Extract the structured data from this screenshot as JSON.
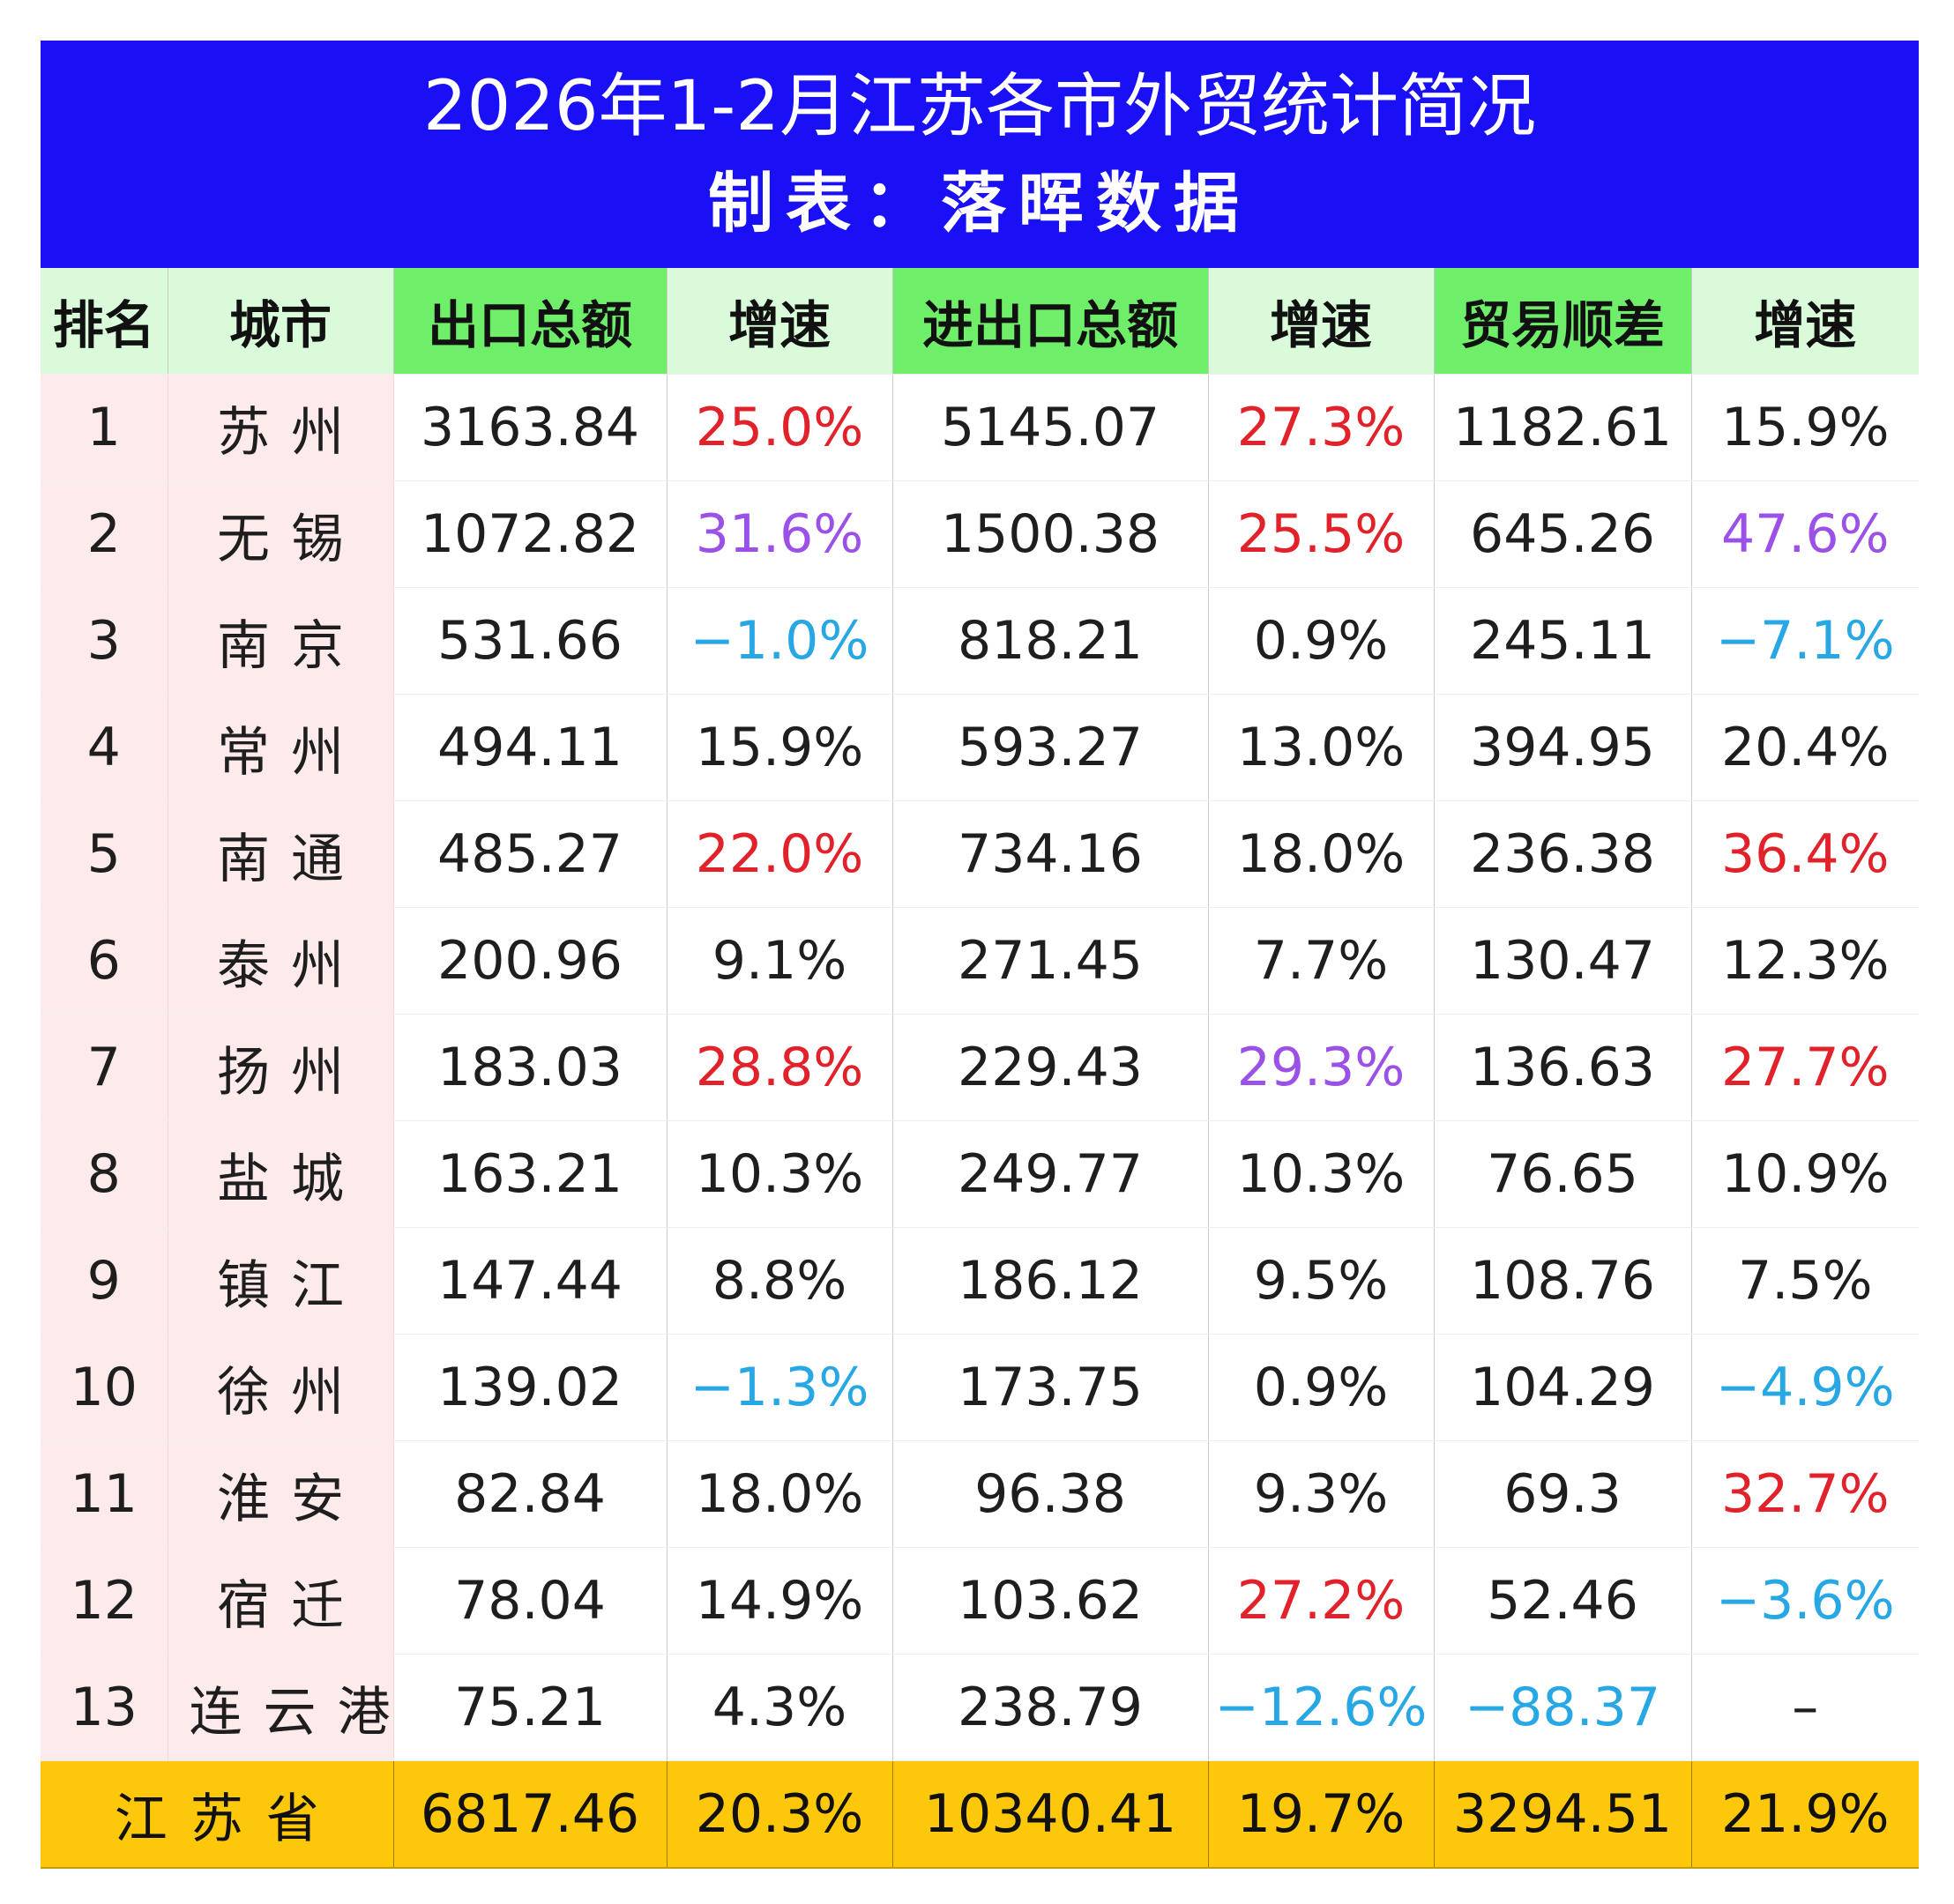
{
  "title": "2026年1-2月江苏各市外贸统计简况",
  "subtitle": "制表：落晖数据",
  "headers": [
    "排名",
    "城市",
    "出口总额",
    "增速",
    "进出口总额",
    "增速",
    "贸易顺差",
    "增速"
  ],
  "colors": {
    "title_bg": "#1a10f5",
    "header_bg": "#d9fbd9",
    "header_highlight_bg": "#6fee6a",
    "rank_city_bg": "#fdeaea",
    "total_bg": "#fdc70a",
    "red": "#e2222a",
    "purple": "#9b51e8",
    "blue": "#27a7e3"
  },
  "rows": [
    {
      "rank": "1",
      "city": "苏州",
      "export": "3163.84",
      "export_growth": "25.0%",
      "export_growth_color": "red",
      "total": "5145.07",
      "total_growth": "27.3%",
      "total_growth_color": "red",
      "surplus": "1182.61",
      "surplus_color": "",
      "surplus_growth": "15.9%",
      "surplus_growth_color": ""
    },
    {
      "rank": "2",
      "city": "无锡",
      "export": "1072.82",
      "export_growth": "31.6%",
      "export_growth_color": "purple",
      "total": "1500.38",
      "total_growth": "25.5%",
      "total_growth_color": "red",
      "surplus": "645.26",
      "surplus_color": "",
      "surplus_growth": "47.6%",
      "surplus_growth_color": "purple"
    },
    {
      "rank": "3",
      "city": "南京",
      "export": "531.66",
      "export_growth": "−1.0%",
      "export_growth_color": "blue",
      "total": "818.21",
      "total_growth": "0.9%",
      "total_growth_color": "",
      "surplus": "245.11",
      "surplus_color": "",
      "surplus_growth": "−7.1%",
      "surplus_growth_color": "blue"
    },
    {
      "rank": "4",
      "city": "常州",
      "export": "494.11",
      "export_growth": "15.9%",
      "export_growth_color": "",
      "total": "593.27",
      "total_growth": "13.0%",
      "total_growth_color": "",
      "surplus": "394.95",
      "surplus_color": "",
      "surplus_growth": "20.4%",
      "surplus_growth_color": ""
    },
    {
      "rank": "5",
      "city": "南通",
      "export": "485.27",
      "export_growth": "22.0%",
      "export_growth_color": "red",
      "total": "734.16",
      "total_growth": "18.0%",
      "total_growth_color": "",
      "surplus": "236.38",
      "surplus_color": "",
      "surplus_growth": "36.4%",
      "surplus_growth_color": "red"
    },
    {
      "rank": "6",
      "city": "泰州",
      "export": "200.96",
      "export_growth": "9.1%",
      "export_growth_color": "",
      "total": "271.45",
      "total_growth": "7.7%",
      "total_growth_color": "",
      "surplus": "130.47",
      "surplus_color": "",
      "surplus_growth": "12.3%",
      "surplus_growth_color": ""
    },
    {
      "rank": "7",
      "city": "扬州",
      "export": "183.03",
      "export_growth": "28.8%",
      "export_growth_color": "red",
      "total": "229.43",
      "total_growth": "29.3%",
      "total_growth_color": "purple",
      "surplus": "136.63",
      "surplus_color": "",
      "surplus_growth": "27.7%",
      "surplus_growth_color": "red"
    },
    {
      "rank": "8",
      "city": "盐城",
      "export": "163.21",
      "export_growth": "10.3%",
      "export_growth_color": "",
      "total": "249.77",
      "total_growth": "10.3%",
      "total_growth_color": "",
      "surplus": "76.65",
      "surplus_color": "",
      "surplus_growth": "10.9%",
      "surplus_growth_color": ""
    },
    {
      "rank": "9",
      "city": "镇江",
      "export": "147.44",
      "export_growth": "8.8%",
      "export_growth_color": "",
      "total": "186.12",
      "total_growth": "9.5%",
      "total_growth_color": "",
      "surplus": "108.76",
      "surplus_color": "",
      "surplus_growth": "7.5%",
      "surplus_growth_color": ""
    },
    {
      "rank": "10",
      "city": "徐州",
      "export": "139.02",
      "export_growth": "−1.3%",
      "export_growth_color": "blue",
      "total": "173.75",
      "total_growth": "0.9%",
      "total_growth_color": "",
      "surplus": "104.29",
      "surplus_color": "",
      "surplus_growth": "−4.9%",
      "surplus_growth_color": "blue"
    },
    {
      "rank": "11",
      "city": "淮安",
      "export": "82.84",
      "export_growth": "18.0%",
      "export_growth_color": "",
      "total": "96.38",
      "total_growth": "9.3%",
      "total_growth_color": "",
      "surplus": "69.3",
      "surplus_color": "",
      "surplus_growth": "32.7%",
      "surplus_growth_color": "red"
    },
    {
      "rank": "12",
      "city": "宿迁",
      "export": "78.04",
      "export_growth": "14.9%",
      "export_growth_color": "",
      "total": "103.62",
      "total_growth": "27.2%",
      "total_growth_color": "red",
      "surplus": "52.46",
      "surplus_color": "",
      "surplus_growth": "−3.6%",
      "surplus_growth_color": "blue"
    },
    {
      "rank": "13",
      "city": "连云港",
      "export": "75.21",
      "export_growth": "4.3%",
      "export_growth_color": "",
      "total": "238.79",
      "total_growth": "−12.6%",
      "total_growth_color": "blue",
      "surplus": "−88.37",
      "surplus_color": "blue",
      "surplus_growth": "–",
      "surplus_growth_color": ""
    }
  ],
  "total": {
    "label": "江苏省",
    "export": "6817.46",
    "export_growth": "20.3%",
    "total": "10340.41",
    "total_growth": "19.7%",
    "surplus": "3294.51",
    "surplus_growth": "21.9%"
  }
}
